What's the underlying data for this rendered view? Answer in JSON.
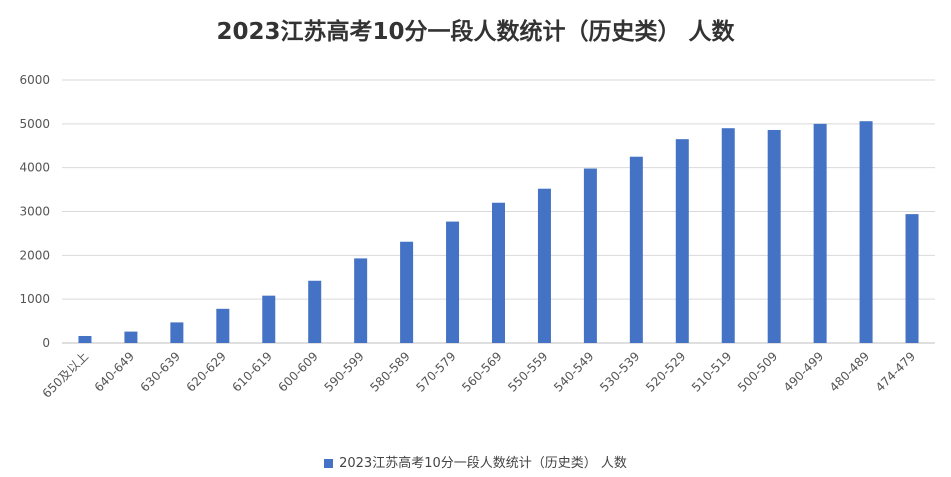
{
  "chart_data": {
    "type": "bar",
    "title": "2023江苏高考10分一段人数统计（历史类） 人数",
    "categories": [
      "650及以上",
      "640-649",
      "630-639",
      "620-629",
      "610-619",
      "600-609",
      "590-599",
      "580-589",
      "570-579",
      "560-569",
      "550-559",
      "540-549",
      "530-539",
      "520-529",
      "510-519",
      "500-509",
      "490-499",
      "480-489",
      "474-479"
    ],
    "series": [
      {
        "name": "2023江苏高考10分一段人数统计（历史类） 人数",
        "values": [
          160,
          260,
          470,
          780,
          1080,
          1420,
          1930,
          2310,
          2770,
          3200,
          3520,
          3980,
          4250,
          4650,
          4900,
          4860,
          5000,
          5060,
          2940
        ]
      }
    ],
    "ylim": [
      0,
      6000
    ],
    "yticks": [
      0,
      1000,
      2000,
      3000,
      4000,
      5000,
      6000
    ],
    "grid": true,
    "legend": "bottom",
    "bar_color": "#4472C4",
    "grid_color": "#d9d9d9"
  }
}
